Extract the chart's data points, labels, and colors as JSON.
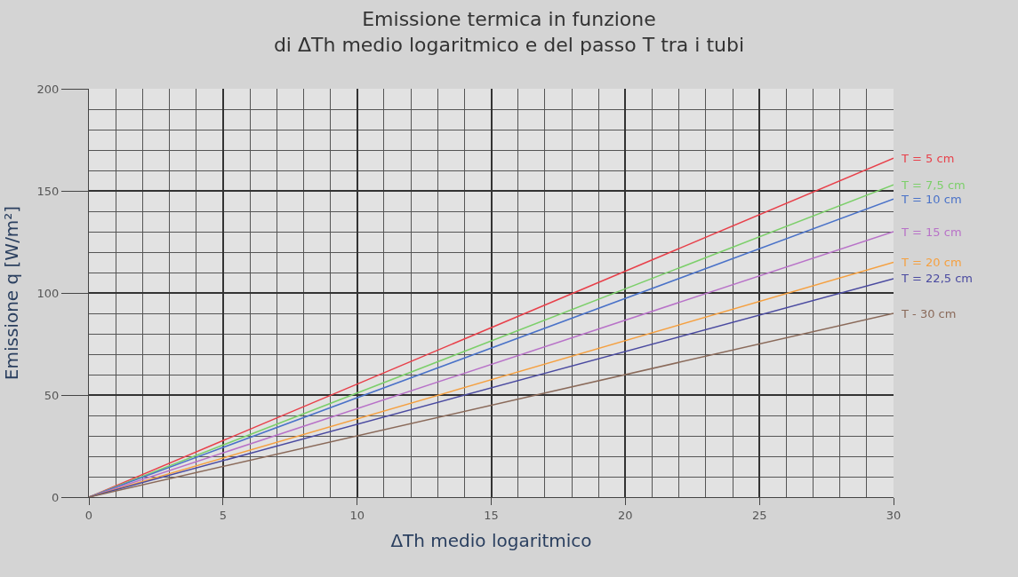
{
  "chart_data": {
    "type": "line",
    "title": "Emissione termica in funzione\ndi ΔTh medio logaritmico e del passo T tra i tubi",
    "xlabel": "ΔTh medio logaritmico",
    "ylabel": "Emissione q [W/m²]",
    "x": [
      0,
      30
    ],
    "series": [
      {
        "name": "T = 5 cm",
        "color": "#e8404a",
        "values": [
          0,
          166
        ]
      },
      {
        "name": "T = 7,5 cm",
        "color": "#7ccf6a",
        "values": [
          0,
          153
        ]
      },
      {
        "name": "T = 10 cm",
        "color": "#4a72c8",
        "values": [
          0,
          146
        ]
      },
      {
        "name": "T = 15 cm",
        "color": "#b872c8",
        "values": [
          0,
          130
        ]
      },
      {
        "name": "T = 20 cm",
        "color": "#f5a040",
        "values": [
          0,
          115
        ]
      },
      {
        "name": "T = 22,5 cm",
        "color": "#4a4aa0",
        "values": [
          0,
          107
        ]
      },
      {
        "name": "T - 30 cm",
        "color": "#8a6a5a",
        "values": [
          0,
          90
        ]
      }
    ],
    "xlim": [
      0,
      30
    ],
    "xticks": [
      0,
      5,
      10,
      15,
      20,
      25,
      30
    ],
    "ylim": [
      0,
      200
    ],
    "yticks": [
      0,
      50,
      100,
      150,
      200
    ],
    "grid": true,
    "legend": false,
    "marker": "none",
    "line_style": "solid"
  }
}
